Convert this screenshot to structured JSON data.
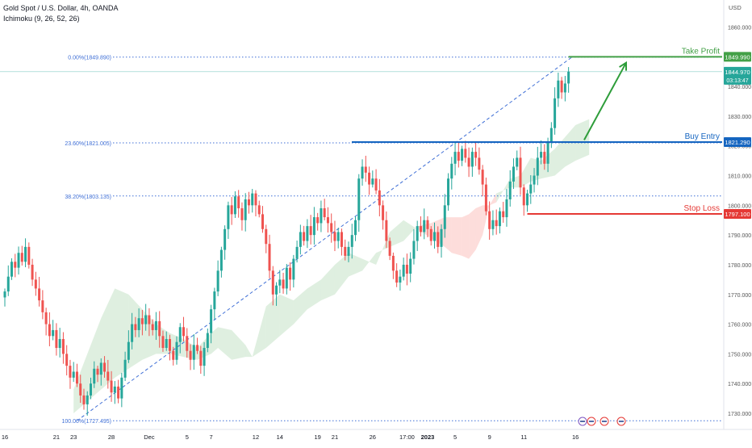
{
  "header": {
    "symbol_line": "Gold Spot / U.S. Dollar, 4h, OANDA",
    "indicator_line": "Ichimoku (9, 26, 52, 26)"
  },
  "axis": {
    "currency": "USD"
  },
  "chart_data": {
    "type": "candlestick",
    "title": "Gold Spot / U.S. Dollar, 4h, OANDA",
    "indicator": "Ichimoku (9, 26, 52, 26)",
    "y_unit": "USD",
    "ylim": [
      1724,
      1866
    ],
    "grid": false,
    "y_ticks": [
      1860,
      1850,
      1840,
      1830,
      1820,
      1810,
      1800,
      1790,
      1780,
      1770,
      1760,
      1750,
      1740,
      1730
    ],
    "x_tick_labels": [
      "16",
      "21",
      "23",
      "28",
      "Dec",
      "5",
      "7",
      "12",
      "14",
      "19",
      "21",
      "26",
      "17:00",
      "2023",
      "5",
      "9",
      "11",
      "16"
    ],
    "fib_levels": [
      {
        "label": "0.00%(1849.890)",
        "price": 1849.89
      },
      {
        "label": "23.60%(1821.005)",
        "price": 1821.005
      },
      {
        "label": "38.20%(1803.135)",
        "price": 1803.135
      },
      {
        "label": "100.00%(1727.495)",
        "price": 1727.495
      }
    ],
    "trade_levels": [
      {
        "label": "Take Profit",
        "price_text": "1849.990",
        "price": 1849.99,
        "color": "#43a047"
      },
      {
        "label": "Buy Entry",
        "price_text": "1821.290",
        "price": 1821.29,
        "color": "#1565c0"
      },
      {
        "label": "Stop Loss",
        "price_text": "1797.100",
        "price": 1797.1,
        "color": "#e53935"
      }
    ],
    "current_price": {
      "price": 1844.97,
      "price_text": "1844.970",
      "countdown": "03:13:47"
    },
    "candles_close": [
      1771,
      1776,
      1781,
      1779,
      1784,
      1781,
      1786,
      1780,
      1775,
      1772,
      1768,
      1764,
      1760,
      1756,
      1758,
      1752,
      1755,
      1750,
      1746,
      1742,
      1744,
      1740,
      1736,
      1733,
      1736,
      1740,
      1745,
      1743,
      1747,
      1744,
      1741,
      1737,
      1739,
      1735,
      1742,
      1748,
      1754,
      1760,
      1758,
      1762,
      1760,
      1763,
      1760,
      1758,
      1761,
      1756,
      1752,
      1755,
      1751,
      1748,
      1754,
      1759,
      1756,
      1751,
      1748,
      1753,
      1751,
      1746,
      1752,
      1757,
      1765,
      1771,
      1778,
      1785,
      1792,
      1800,
      1797,
      1803,
      1799,
      1795,
      1802,
      1800,
      1804,
      1800,
      1797,
      1792,
      1787,
      1778,
      1770,
      1773,
      1775,
      1772,
      1779,
      1775,
      1782,
      1786,
      1791,
      1788,
      1793,
      1790,
      1796,
      1794,
      1799,
      1796,
      1794,
      1791,
      1788,
      1791,
      1786,
      1783,
      1786,
      1790,
      1795,
      1809,
      1813,
      1811,
      1807,
      1809,
      1805,
      1800,
      1795,
      1788,
      1783,
      1778,
      1774,
      1776,
      1780,
      1777,
      1782,
      1788,
      1793,
      1791,
      1795,
      1792,
      1788,
      1791,
      1786,
      1792,
      1800,
      1809,
      1814,
      1818,
      1815,
      1819,
      1816,
      1813,
      1818,
      1816,
      1812,
      1807,
      1798,
      1792,
      1795,
      1793,
      1798,
      1796,
      1802,
      1808,
      1813,
      1816,
      1806,
      1800,
      1804,
      1807,
      1810,
      1816,
      1818,
      1814,
      1821,
      1826,
      1836,
      1842,
      1838,
      1841,
      1845
    ],
    "x_label_positions": [
      [
        0,
        16
      ],
      [
        15,
        21
      ],
      [
        20,
        23
      ],
      [
        31,
        28
      ],
      [
        42,
        "Dec"
      ],
      [
        53,
        5
      ],
      [
        60,
        7
      ],
      [
        73,
        12
      ],
      [
        80,
        14
      ],
      [
        91,
        19
      ],
      [
        96,
        21
      ],
      [
        107,
        26
      ],
      [
        117,
        "17:00"
      ],
      [
        123,
        2023
      ],
      [
        131,
        5
      ],
      [
        141,
        9
      ],
      [
        151,
        11
      ],
      [
        166,
        16
      ]
    ],
    "cloud": [
      [
        20,
        1738,
        1730
      ],
      [
        24,
        1750,
        1734
      ],
      [
        28,
        1762,
        1738
      ],
      [
        32,
        1772,
        1742
      ],
      [
        36,
        1770,
        1745
      ],
      [
        40,
        1765,
        1748
      ],
      [
        44,
        1760,
        1750
      ],
      [
        48,
        1757,
        1750
      ],
      [
        52,
        1755,
        1749
      ],
      [
        56,
        1752,
        1748
      ],
      [
        60,
        1757,
        1750
      ],
      [
        62,
        1759,
        1752
      ],
      [
        66,
        1758,
        1748
      ],
      [
        70,
        1753,
        1749
      ],
      [
        72,
        1749,
        1749
      ],
      [
        76,
        1766,
        1752
      ],
      [
        80,
        1770,
        1756
      ],
      [
        84,
        1768,
        1760
      ],
      [
        88,
        1772,
        1765
      ],
      [
        92,
        1775,
        1768
      ],
      [
        96,
        1780,
        1770
      ],
      [
        100,
        1784,
        1776
      ],
      [
        104,
        1782,
        1778
      ],
      [
        108,
        1780,
        1784
      ],
      [
        112,
        1791,
        1786
      ],
      [
        116,
        1795,
        1788
      ],
      [
        120,
        1792,
        1793
      ],
      [
        124,
        1789,
        1794
      ],
      [
        128,
        1786,
        1796
      ],
      [
        130,
        1784,
        1796
      ],
      [
        133,
        1783,
        1796
      ],
      [
        135,
        1782,
        1797
      ],
      [
        137,
        1785,
        1799
      ],
      [
        139,
        1790,
        1800
      ],
      [
        141,
        1800,
        1800
      ],
      [
        143,
        1801,
        1804
      ],
      [
        147,
        1809,
        1806
      ],
      [
        150,
        1810,
        1806
      ],
      [
        153,
        1816,
        1808
      ],
      [
        156,
        1815,
        1809
      ],
      [
        160,
        1819,
        1810
      ],
      [
        163,
        1823,
        1813
      ],
      [
        166,
        1827,
        1815
      ],
      [
        170,
        1829,
        1817
      ]
    ]
  }
}
